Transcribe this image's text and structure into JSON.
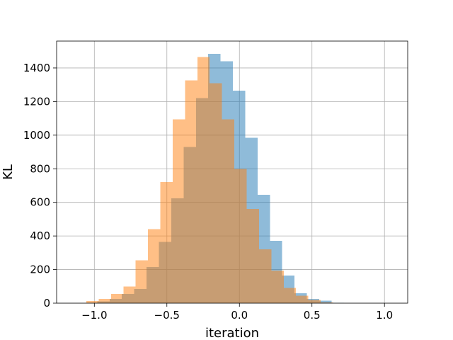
{
  "chart_data": {
    "type": "histogram",
    "title": "",
    "xlabel": "iteration",
    "ylabel": "KL",
    "xlim": [
      -1.26,
      1.16
    ],
    "ylim": [
      0,
      1560
    ],
    "grid": true,
    "legend": "none",
    "x_ticks": [
      -1.0,
      -0.5,
      0.0,
      0.5,
      1.0
    ],
    "x_tick_labels": [
      "−1.0",
      "−0.5",
      "0.0",
      "0.5",
      "1.0"
    ],
    "y_ticks": [
      0,
      200,
      400,
      600,
      800,
      1000,
      1200,
      1400
    ],
    "y_tick_labels": [
      "0",
      "200",
      "400",
      "600",
      "800",
      "1000",
      "1200",
      "1400"
    ],
    "series": [
      {
        "color": "#1f77b4",
        "alpha": 0.5,
        "bin_edges": [
          -1.15,
          -1.065,
          -0.98,
          -0.895,
          -0.81,
          -0.725,
          -0.64,
          -0.555,
          -0.47,
          -0.385,
          -0.3,
          -0.215,
          -0.13,
          -0.045,
          0.04,
          0.125,
          0.21,
          0.295,
          0.38,
          0.465,
          0.55,
          0.635,
          0.72,
          0.805,
          0.89,
          0.975,
          1.06
        ],
        "counts": [
          1,
          2,
          10,
          25,
          55,
          85,
          215,
          365,
          625,
          930,
          1220,
          1485,
          1440,
          1265,
          985,
          645,
          370,
          165,
          60,
          25,
          15,
          3,
          1,
          1,
          1,
          1
        ]
      },
      {
        "color": "#ff7f0e",
        "alpha": 0.5,
        "bin_edges": [
          -1.14,
          -1.055,
          -0.97,
          -0.885,
          -0.8,
          -0.715,
          -0.63,
          -0.545,
          -0.46,
          -0.375,
          -0.29,
          -0.205,
          -0.12,
          -0.035,
          0.05,
          0.135,
          0.22,
          0.305,
          0.39,
          0.475,
          0.56,
          0.645
        ],
        "counts": [
          1,
          12,
          25,
          55,
          100,
          255,
          440,
          720,
          1095,
          1325,
          1465,
          1310,
          1095,
          800,
          560,
          320,
          195,
          90,
          45,
          20,
          5
        ]
      }
    ]
  }
}
